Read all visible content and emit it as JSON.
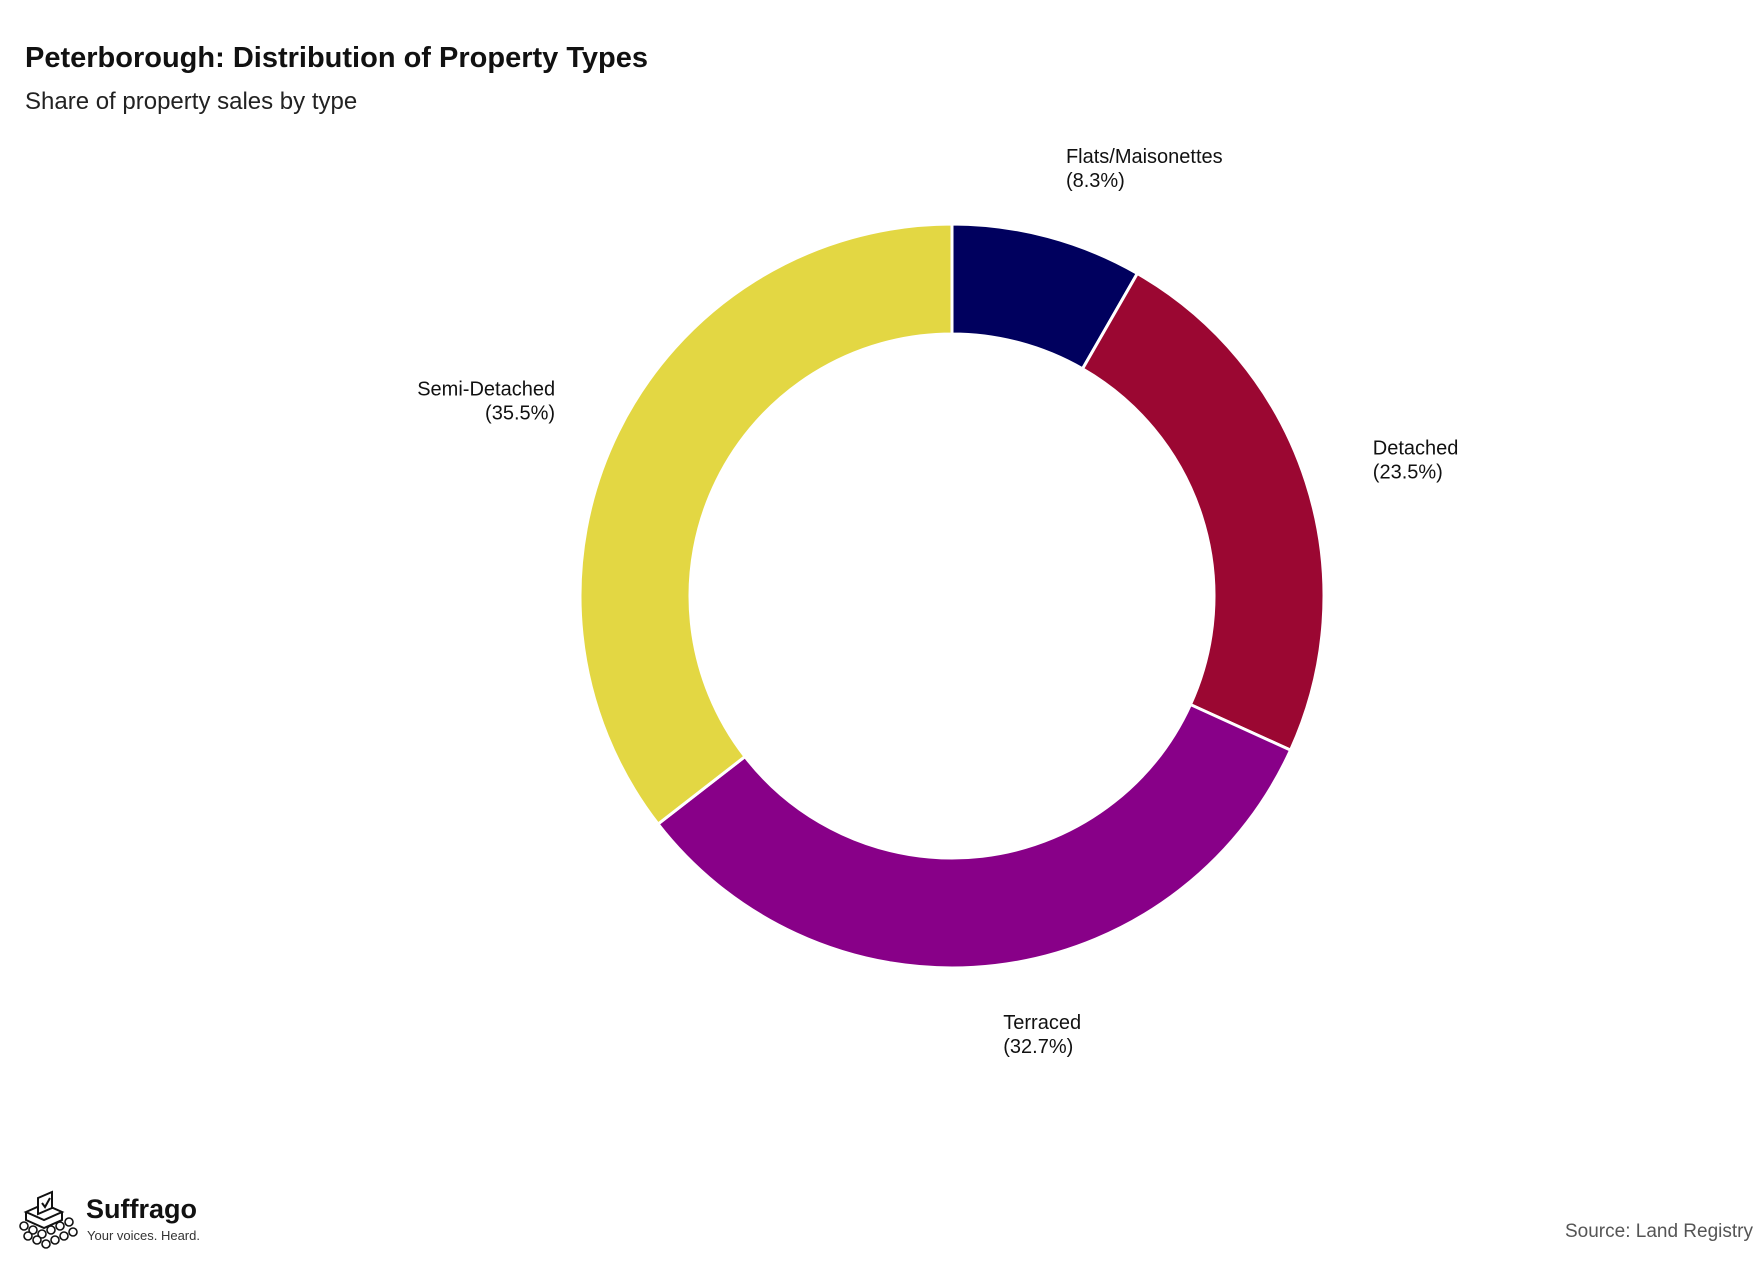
{
  "title": "Peterborough: Distribution of Property Types",
  "subtitle": "Share of property sales by type",
  "chart_data": {
    "type": "pie",
    "title": "Peterborough: Distribution of Property Types",
    "subtitle": "Share of property sales by type",
    "donut": true,
    "start_angle": "12 o'clock",
    "direction": "clockwise",
    "labels": [
      {
        "category": "Flats/Maisonettes",
        "value_text": "(8.3%)"
      },
      {
        "category": "Detached",
        "value_text": "(23.5%)"
      },
      {
        "category": "Terraced",
        "value_text": "(32.7%)"
      },
      {
        "category": "Semi-Detached",
        "value_text": "(35.5%)"
      }
    ],
    "categories": [
      "Flats/Maisonettes",
      "Detached",
      "Terraced",
      "Semi-Detached"
    ],
    "values": [
      8.3,
      23.5,
      32.7,
      35.5
    ],
    "colors": [
      "#00005e",
      "#9b0732",
      "#880088",
      "#e3d743"
    ]
  },
  "logo": {
    "name": "Suffrago",
    "tagline": "Your voices. Heard."
  },
  "source": "Source: Land Registry"
}
